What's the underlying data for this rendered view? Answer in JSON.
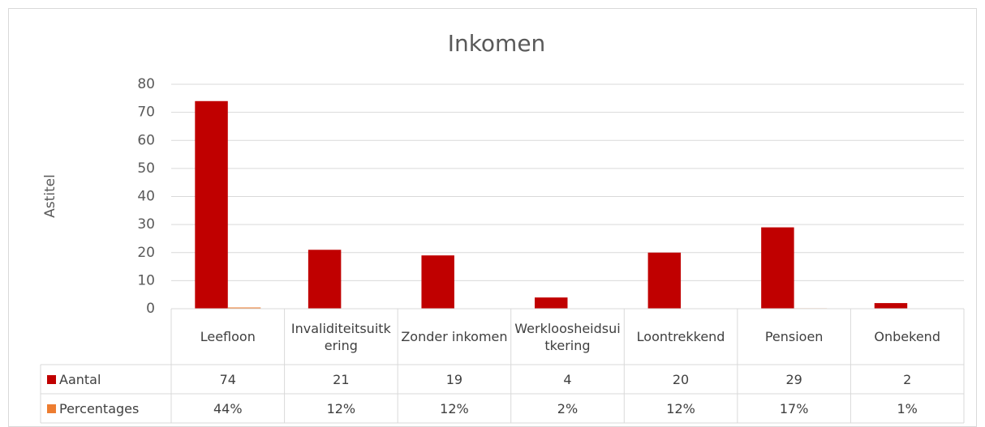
{
  "chart_data": {
    "type": "bar",
    "title": "Inkomen",
    "y_label": "Astitel",
    "categories": [
      "Leefloon",
      "Invaliditeitsuitkering",
      "Zonder inkomen",
      "Werkloosheidsuitkering",
      "Loontrekkend",
      "Pensioen",
      "Onbekend"
    ],
    "series": [
      {
        "name": "Aantal",
        "color": "#c00000",
        "values": [
          74,
          21,
          19,
          4,
          20,
          29,
          2
        ]
      },
      {
        "name": "Percentages",
        "color": "#ed7d31",
        "values": [
          0.44,
          0.12,
          0.12,
          0.02,
          0.12,
          0.17,
          0.01
        ],
        "value_labels": [
          "44%",
          "12%",
          "12%",
          "2%",
          "12%",
          "17%",
          "1%"
        ]
      }
    ],
    "ylim": [
      0,
      80
    ],
    "yticks": [
      0,
      10,
      20,
      30,
      40,
      50,
      60,
      70,
      80
    ],
    "grid": true,
    "data_table": true
  }
}
